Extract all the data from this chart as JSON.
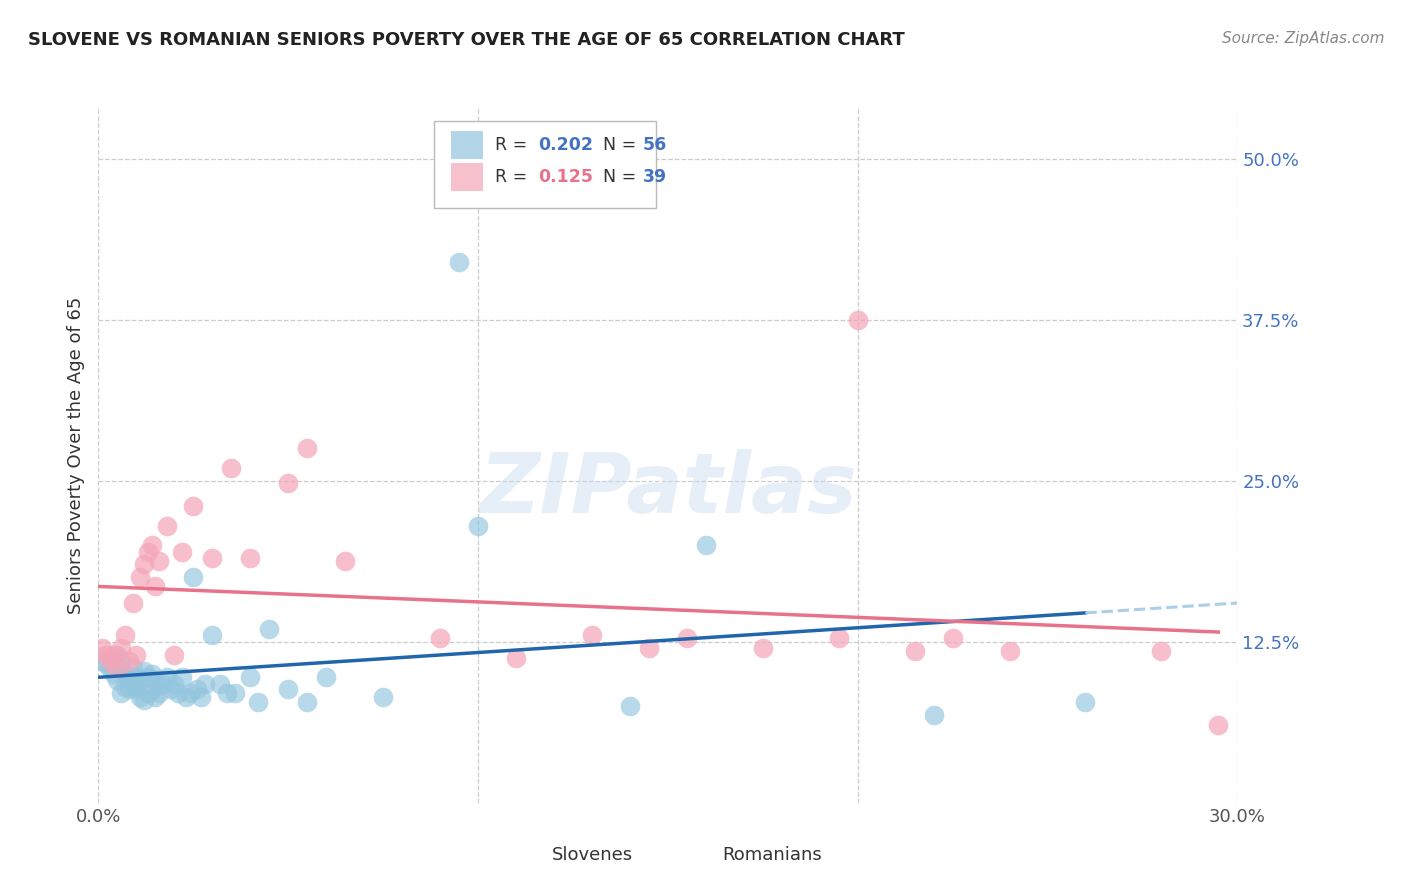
{
  "title": "SLOVENE VS ROMANIAN SENIORS POVERTY OVER THE AGE OF 65 CORRELATION CHART",
  "source": "Source: ZipAtlas.com",
  "ylabel": "Seniors Poverty Over the Age of 65",
  "xlim": [
    0.0,
    0.3
  ],
  "ylim": [
    0.0,
    0.54
  ],
  "ytick_vals": [
    0.125,
    0.25,
    0.375,
    0.5
  ],
  "ytick_labels": [
    "12.5%",
    "25.0%",
    "37.5%",
    "50.0%"
  ],
  "legend_slovene_R": "0.202",
  "legend_slovene_N": "56",
  "legend_romanian_R": "0.125",
  "legend_romanian_N": "39",
  "slovene_color": "#92c5de",
  "romanian_color": "#f4a6b8",
  "slovene_line_color": "#2166ac",
  "romanian_line_color": "#e8728a",
  "dashed_line_color": "#aacfe8",
  "background_color": "#ffffff",
  "grid_color": "#cccccc",
  "slovene_x": [
    0.001,
    0.002,
    0.003,
    0.004,
    0.005,
    0.005,
    0.006,
    0.006,
    0.007,
    0.007,
    0.008,
    0.008,
    0.009,
    0.009,
    0.01,
    0.01,
    0.011,
    0.011,
    0.012,
    0.012,
    0.013,
    0.013,
    0.014,
    0.014,
    0.015,
    0.015,
    0.016,
    0.017,
    0.018,
    0.019,
    0.02,
    0.021,
    0.022,
    0.023,
    0.024,
    0.025,
    0.026,
    0.027,
    0.028,
    0.03,
    0.032,
    0.034,
    0.036,
    0.04,
    0.042,
    0.045,
    0.05,
    0.055,
    0.06,
    0.075,
    0.095,
    0.1,
    0.14,
    0.16,
    0.22,
    0.26
  ],
  "slovene_y": [
    0.11,
    0.108,
    0.105,
    0.1,
    0.115,
    0.095,
    0.085,
    0.11,
    0.09,
    0.1,
    0.088,
    0.095,
    0.092,
    0.105,
    0.088,
    0.098,
    0.082,
    0.095,
    0.08,
    0.102,
    0.085,
    0.098,
    0.088,
    0.1,
    0.082,
    0.095,
    0.085,
    0.092,
    0.098,
    0.088,
    0.092,
    0.085,
    0.098,
    0.082,
    0.085,
    0.175,
    0.088,
    0.082,
    0.092,
    0.13,
    0.092,
    0.085,
    0.085,
    0.098,
    0.078,
    0.135,
    0.088,
    0.078,
    0.098,
    0.082,
    0.42,
    0.215,
    0.075,
    0.2,
    0.068,
    0.078
  ],
  "romanian_x": [
    0.001,
    0.002,
    0.003,
    0.004,
    0.005,
    0.006,
    0.007,
    0.008,
    0.009,
    0.01,
    0.011,
    0.012,
    0.013,
    0.014,
    0.015,
    0.016,
    0.018,
    0.02,
    0.022,
    0.025,
    0.03,
    0.035,
    0.04,
    0.05,
    0.055,
    0.065,
    0.09,
    0.11,
    0.13,
    0.145,
    0.155,
    0.175,
    0.195,
    0.2,
    0.215,
    0.225,
    0.24,
    0.28,
    0.295
  ],
  "romanian_y": [
    0.12,
    0.115,
    0.11,
    0.115,
    0.105,
    0.12,
    0.13,
    0.11,
    0.155,
    0.115,
    0.175,
    0.185,
    0.195,
    0.2,
    0.168,
    0.188,
    0.215,
    0.115,
    0.195,
    0.23,
    0.19,
    0.26,
    0.19,
    0.248,
    0.275,
    0.188,
    0.128,
    0.112,
    0.13,
    0.12,
    0.128,
    0.12,
    0.128,
    0.375,
    0.118,
    0.128,
    0.118,
    0.118,
    0.06
  ]
}
